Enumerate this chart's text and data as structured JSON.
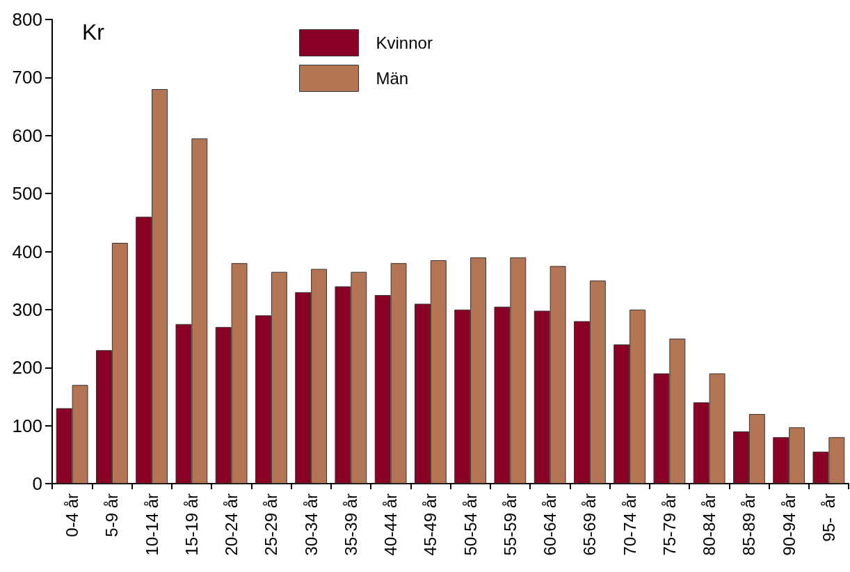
{
  "chart_data": {
    "type": "bar",
    "ylabel": "Kr",
    "categories": [
      "0-4 år",
      "5-9 år",
      "10-14 år",
      "15-19 år",
      "20-24 år",
      "25-29 år",
      "30-34 år",
      "35-39 år",
      "40-44 år",
      "45-49 år",
      "50-54 år",
      "55-59 år",
      "60-64 år",
      "65-69 år",
      "70-74 år",
      "75-79 år",
      "80-84 år",
      "85-89 år",
      "90-94 år",
      "95-  år"
    ],
    "series": [
      {
        "name": "Kvinnor",
        "color": "#8b0025",
        "values": [
          130,
          230,
          460,
          275,
          270,
          290,
          330,
          340,
          325,
          310,
          300,
          305,
          298,
          280,
          240,
          190,
          140,
          90,
          80,
          55
        ]
      },
      {
        "name": "Män",
        "color": "#b47555",
        "values": [
          170,
          415,
          680,
          595,
          380,
          365,
          370,
          365,
          380,
          385,
          390,
          390,
          375,
          350,
          300,
          250,
          190,
          120,
          97,
          80
        ]
      }
    ],
    "ylim": [
      0,
      800
    ],
    "yticks": [
      0,
      100,
      200,
      300,
      400,
      500,
      600,
      700,
      800
    ],
    "grid": false,
    "legend": "top"
  }
}
